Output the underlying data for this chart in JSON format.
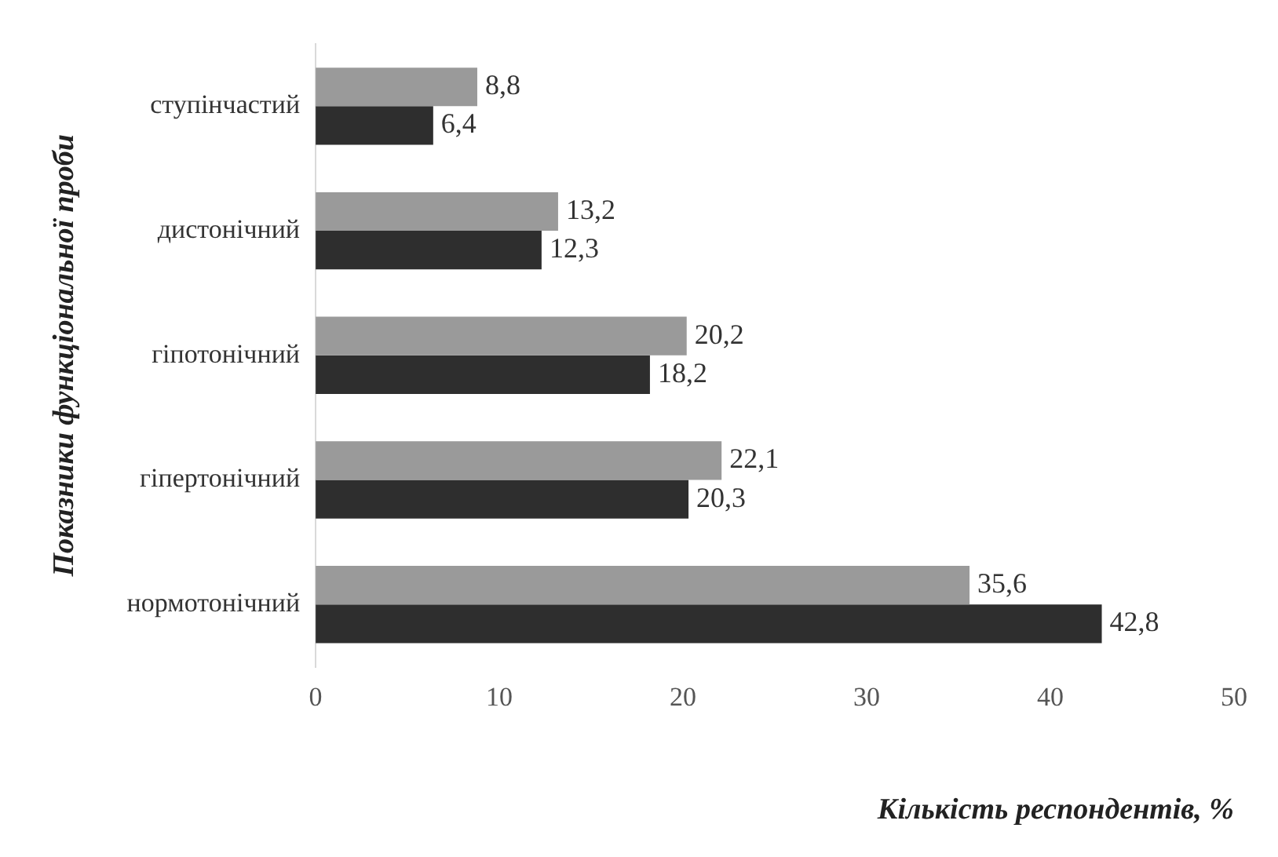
{
  "chart_data": {
    "type": "bar",
    "orientation": "horizontal",
    "categories": [
      "ступінчастий",
      "дистонічний",
      "гіпотонічний",
      "гіпертонічний",
      "нормотонічний"
    ],
    "series": [
      {
        "color": "#9a9a9a",
        "values": [
          8.8,
          13.2,
          20.2,
          22.1,
          35.6
        ],
        "value_labels": [
          "8,8",
          "13,2",
          "20,2",
          "22,1",
          "35,6"
        ]
      },
      {
        "color": "#2e2e2e",
        "values": [
          6.4,
          12.3,
          18.2,
          20.3,
          42.8
        ],
        "value_labels": [
          "6,4",
          "12,3",
          "18,2",
          "20,3",
          "42,8"
        ]
      }
    ],
    "xlim": [
      0,
      50
    ],
    "xticks": [
      0,
      10,
      20,
      30,
      40,
      50
    ],
    "grid": false,
    "legend": false,
    "xlabel": "Кількість респондентів, %",
    "ylabel": "Показники функціональної проби"
  }
}
